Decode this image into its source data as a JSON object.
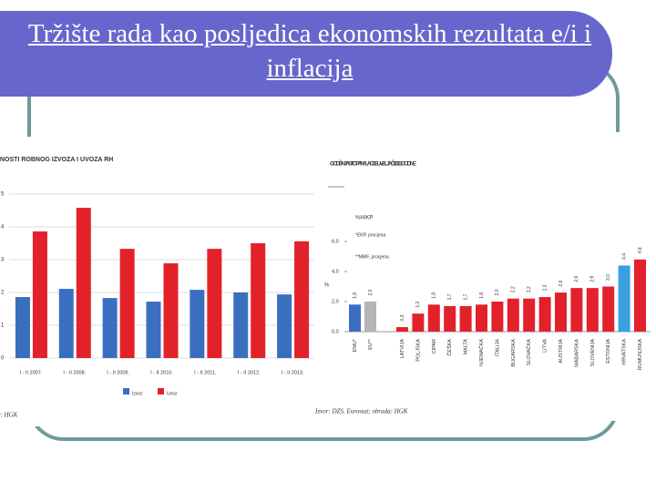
{
  "title": "Tržište rada kao posljedica ekonomskih rezultata e/i i inflacija",
  "chart_data": [
    {
      "type": "bar",
      "title": "NOSTI ROBNOG IZVOZA I UVOZA RH",
      "categories": [
        "I - II 2007.",
        "I - II 2008.",
        "I - II 2009.",
        "I - II 2010.",
        "I - II 2011.",
        "I - II 2012.",
        "I - II 2013."
      ],
      "series": [
        {
          "name": "Izvoz",
          "color": "#3a6fc0",
          "values": [
            1.86,
            2.11,
            1.83,
            1.72,
            2.08,
            2.0,
            1.94
          ]
        },
        {
          "name": "Uvoz",
          "color": "#e3212b",
          "values": [
            3.86,
            4.58,
            3.33,
            2.89,
            3.33,
            3.5,
            3.56
          ]
        }
      ],
      "ylim": [
        0,
        5
      ],
      "yticks": [
        0,
        1,
        2,
        3,
        4,
        5
      ],
      "grid": true,
      "source": "Izvor: HGK"
    },
    {
      "type": "bar",
      "title": "GODIŠNJA STOPA INFLACIJE U VELJAČI 2013. GODINE",
      "subtitle": "%HIKP",
      "annotations": [
        "*EKP, procjena",
        "**MMF, procjena"
      ],
      "y_label": "%",
      "categories": [
        "EMU*",
        "EU**",
        "LATVIJA",
        "POLJSKA",
        "CIPAR",
        "ČEŠKA",
        "MALTA",
        "NJEMAČKA",
        "ITALIJA",
        "BUGARSKA",
        "SLOVAČKA",
        "LITVA",
        "AUSTRIJA",
        "MAĐARSKA",
        "SLOVENIJA",
        "ESTONIJA",
        "HRVATSKA",
        "RUMUNJSKA"
      ],
      "values": [
        1.8,
        2.0,
        0.3,
        1.2,
        1.8,
        1.7,
        1.7,
        1.8,
        2.0,
        2.2,
        2.2,
        2.3,
        2.6,
        2.9,
        2.9,
        3.0,
        4.4,
        4.8
      ],
      "value_labels": [
        "1,8",
        "2,0",
        "0,3",
        "1,2",
        "1,8",
        "1,7",
        "1,7",
        "1,8",
        "2,0",
        "2,2",
        "2,2",
        "2,3",
        "2,6",
        "2,9",
        "2,9",
        "3,0",
        "4,4",
        "4,8"
      ],
      "colors": [
        "#3a6fc0",
        "#b5b5b5",
        "#e3212b",
        "#e3212b",
        "#e3212b",
        "#e3212b",
        "#e3212b",
        "#e3212b",
        "#e3212b",
        "#e3212b",
        "#e3212b",
        "#e3212b",
        "#e3212b",
        "#e3212b",
        "#e3212b",
        "#e3212b",
        "#3aa0e0",
        "#e3212b"
      ],
      "ylim": [
        0,
        6
      ],
      "yticks": [
        {
          "value": 0,
          "label": "0,0"
        },
        {
          "value": 2,
          "label": "2,0"
        },
        {
          "value": 4,
          "label": "4,0"
        },
        {
          "value": 6,
          "label": "6,0"
        }
      ],
      "source": "Izvor: DZS, Eurostat; obrada: HGK"
    }
  ]
}
